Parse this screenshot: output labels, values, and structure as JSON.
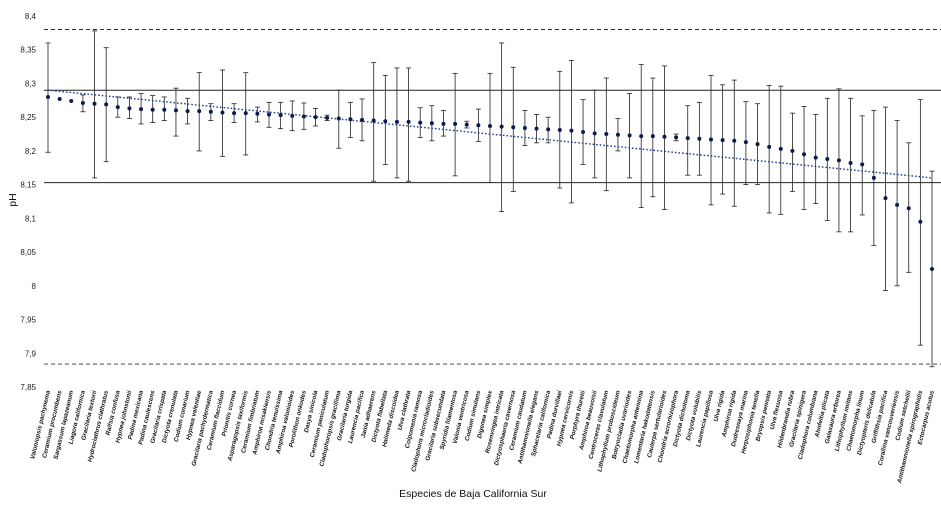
{
  "chart_data": {
    "type": "scatter",
    "title": "",
    "xlabel": "Especies de Baja California Sur",
    "ylabel": "pH",
    "ylim": [
      7.85,
      8.4
    ],
    "yticks": [
      "7,85",
      "7,9",
      "7,95",
      "8",
      "8,05",
      "8,1",
      "8,15",
      "8,2",
      "8,25",
      "8,3",
      "8,35",
      "8,4"
    ],
    "ytick_values": [
      7.85,
      7.9,
      7.95,
      8.0,
      8.05,
      8.1,
      8.15,
      8.2,
      8.25,
      8.3,
      8.35,
      8.4
    ],
    "reference_lines": {
      "upper_dashed": 8.38,
      "upper_solid": 8.29,
      "lower_solid": 8.153,
      "lower_dashed": 7.884
    },
    "trendline": {
      "start": 8.29,
      "end": 8.16,
      "style": "dotted"
    },
    "categories": [
      "Valoniopsis pachynema",
      "Ceramium procumbens",
      "Sargassum lapazeanum",
      "Liagora californica",
      "Gracilaria textorii",
      "Hydroclathrus clathratus",
      "Ralfsia confusa",
      "Hypnea johnstonii",
      "Padina mexicana",
      "Padina caulescens",
      "Gracilaria crispata",
      "Dictyota crenulata",
      "Codium conarium",
      "Hypnea valentiae",
      "Gracilaria pachydermatica",
      "Ceramium flaccidum",
      "Prionitis cornea",
      "Asparagopsis taxiformis",
      "Ceramium fimbriatum",
      "Amphiroa misakiensis",
      "Chondria tenuissima",
      "Amphiroa valonioides",
      "Porolithon onkodes",
      "Dasya sinicola",
      "Ceramium paniculatum",
      "Cladophoropsis gracillima",
      "Gracilaria turgida",
      "Laurencia pacifica",
      "Jania adhaerens",
      "Dictyota flabellata",
      "Halimeda discoidea",
      "Ulva clathrata",
      "Colpomenia ramosa",
      "Cladophora microcladioides",
      "Gracilaria subsecundata",
      "Spyridia filamentosa",
      "Valonia ventricosa",
      "Codium simulans",
      "Digenea simplex",
      "Rosenvingea intricata",
      "Dictyosphaeria cavernosa",
      "Ceramium caudatum",
      "Antithamnionella elegans",
      "Sphacelaria californica",
      "Padina durvillaei",
      "Hypnea cervicornis",
      "Porphyra thuretii",
      "Amphiroa beauvoisii",
      "Centroceras clavulatum",
      "Lithophyllum proboscideum",
      "Botryocladia uvarioides",
      "Chaetomorpha antennina",
      "Lomentaria hakodatensis",
      "Caulerpa sertularioides",
      "Chondria acrorhizophora",
      "Dictyota dichotoma",
      "Dictyota volubilis",
      "Laurencia papillosa",
      "Ulva rigida",
      "Amphiroa rigida",
      "Dudresnaya marina",
      "Herposiphonia tenella",
      "Bryopsis pennata",
      "Ulva flexuosa",
      "Hildenbrandia rubra",
      "Gracilaria spinigera",
      "Cladophora columbiana",
      "Ahnfeltia plicata",
      "Galaxaura arborea",
      "Lithophyllum imitans",
      "Chaetomorpha linum",
      "Dictyopteris delicatula",
      "Griffithsia pacifica",
      "Corallina vancouveriensis",
      "Codium setchellii",
      "Antithamnionella spirographidis",
      "Ectocarpus acutus"
    ],
    "series": [
      {
        "name": "pH",
        "values": [
          8.28,
          8.277,
          8.274,
          8.271,
          8.27,
          8.269,
          8.265,
          8.263,
          8.262,
          8.261,
          8.261,
          8.26,
          8.259,
          8.259,
          8.258,
          8.257,
          8.256,
          8.256,
          8.255,
          8.254,
          8.253,
          8.252,
          8.251,
          8.25,
          8.249,
          8.248,
          8.247,
          8.246,
          8.245,
          8.244,
          8.243,
          8.243,
          8.242,
          8.241,
          8.24,
          8.24,
          8.239,
          8.238,
          8.237,
          8.236,
          8.235,
          8.234,
          8.233,
          8.232,
          8.231,
          8.23,
          8.228,
          8.226,
          8.225,
          8.224,
          8.223,
          8.222,
          8.222,
          8.221,
          8.22,
          8.219,
          8.218,
          8.217,
          8.216,
          8.215,
          8.213,
          8.21,
          8.206,
          8.203,
          8.2,
          8.195,
          8.19,
          8.188,
          8.186,
          8.182,
          8.18,
          8.16,
          8.13,
          8.12,
          8.115,
          8.095,
          8.025
        ],
        "error_low": [
          8.198,
          8.277,
          8.274,
          8.258,
          8.16,
          8.184,
          8.25,
          8.248,
          8.24,
          8.242,
          8.245,
          8.222,
          8.24,
          8.2,
          8.245,
          8.192,
          8.242,
          8.194,
          8.243,
          8.235,
          8.233,
          8.23,
          8.232,
          8.237,
          8.245,
          8.204,
          8.22,
          8.215,
          8.155,
          8.18,
          8.16,
          8.155,
          8.22,
          8.215,
          8.222,
          8.163,
          8.234,
          8.214,
          8.153,
          8.11,
          8.14,
          8.208,
          8.212,
          8.212,
          8.145,
          8.123,
          8.18,
          8.16,
          8.141,
          8.2,
          8.16,
          8.116,
          8.132,
          8.113,
          8.215,
          8.164,
          8.164,
          8.12,
          8.136,
          8.118,
          8.15,
          8.15,
          8.108,
          8.106,
          8.14,
          8.113,
          8.122,
          8.097,
          8.08,
          8.08,
          8.105,
          8.06,
          7.993,
          8.0,
          8.02,
          7.912,
          7.88
        ],
        "error_high": [
          8.36,
          8.277,
          8.274,
          8.283,
          8.378,
          8.353,
          8.28,
          8.28,
          8.285,
          8.282,
          8.28,
          8.293,
          8.278,
          8.316,
          8.27,
          8.32,
          8.27,
          8.316,
          8.265,
          8.272,
          8.272,
          8.274,
          8.271,
          8.263,
          8.253,
          8.29,
          8.272,
          8.277,
          8.331,
          8.312,
          8.323,
          8.323,
          8.264,
          8.267,
          8.26,
          8.315,
          8.244,
          8.262,
          8.315,
          8.36,
          8.324,
          8.26,
          8.254,
          8.25,
          8.318,
          8.334,
          8.276,
          8.29,
          8.308,
          8.248,
          8.285,
          8.328,
          8.308,
          8.326,
          8.225,
          8.267,
          8.272,
          8.312,
          8.298,
          8.305,
          8.273,
          8.27,
          8.297,
          8.296,
          8.256,
          8.266,
          8.254,
          8.278,
          8.292,
          8.278,
          8.252,
          8.26,
          8.265,
          8.245,
          8.212,
          8.276,
          8.17
        ]
      }
    ]
  }
}
